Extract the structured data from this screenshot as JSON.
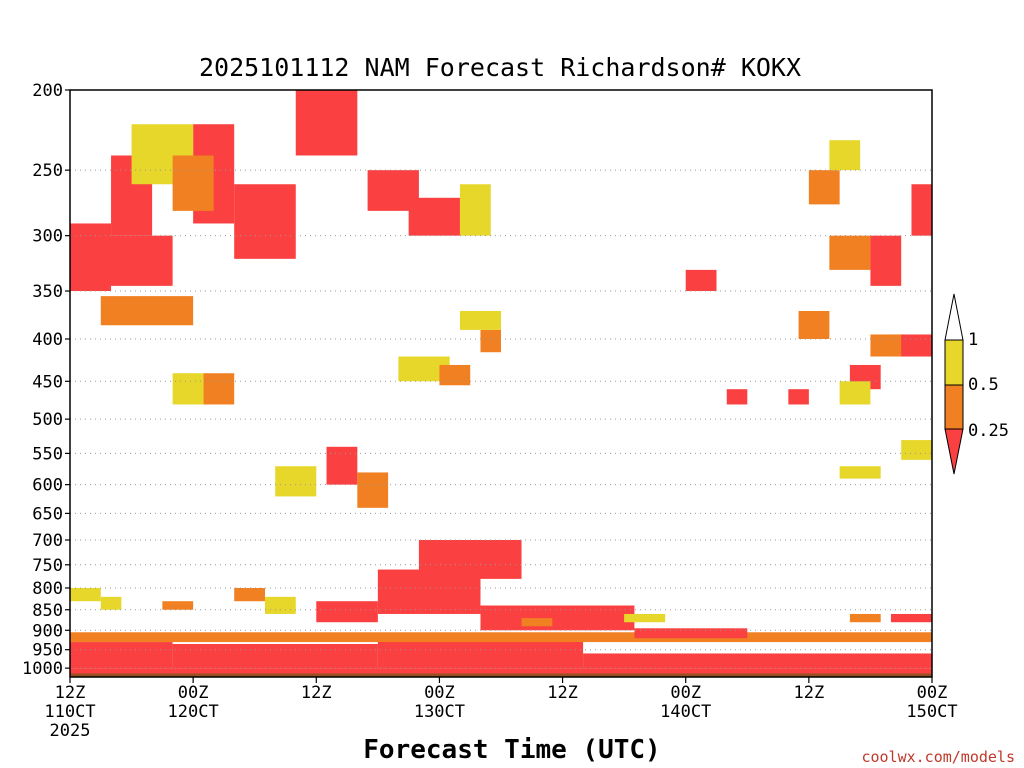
{
  "chart_data": {
    "type": "heatmap",
    "title": "2025101112 NAM Forecast Richardson# KOKX",
    "xlabel": "Forecast Time (UTC)",
    "ylabel": "",
    "credit": "coolwx.com/models",
    "x_range_hours": [
      0,
      84
    ],
    "y_range_hpa": [
      200,
      1025
    ],
    "y_scale": "log",
    "grid": "dotted horizontal",
    "y_ticks": [
      200,
      250,
      300,
      350,
      400,
      450,
      500,
      550,
      600,
      650,
      700,
      750,
      800,
      850,
      900,
      950,
      1000
    ],
    "x_ticks": [
      {
        "hour": 0,
        "line1": "12Z",
        "line2": "110CT",
        "line3": "2025"
      },
      {
        "hour": 12,
        "line1": "00Z",
        "line2": "120CT",
        "line3": ""
      },
      {
        "hour": 24,
        "line1": "12Z",
        "line2": "",
        "line3": ""
      },
      {
        "hour": 36,
        "line1": "00Z",
        "line2": "130CT",
        "line3": ""
      },
      {
        "hour": 48,
        "line1": "12Z",
        "line2": "",
        "line3": ""
      },
      {
        "hour": 60,
        "line1": "00Z",
        "line2": "140CT",
        "line3": ""
      },
      {
        "hour": 72,
        "line1": "12Z",
        "line2": "",
        "line3": ""
      },
      {
        "hour": 84,
        "line1": "00Z",
        "line2": "150CT",
        "line3": ""
      }
    ],
    "legend": {
      "placement": "right",
      "labels": [
        "1",
        "0.5",
        "0.25"
      ],
      "colors": {
        "high": "#ffffff",
        "mid": "#e6d72a",
        "low": "#f08022",
        "lowest": "#fa4040"
      }
    },
    "colors": {
      "red": "#fa4040",
      "orange": "#f08022",
      "yellow": "#e6d72a",
      "ground": "#9a4e23"
    },
    "ground_pressure_hpa": 1015,
    "regions": [
      {
        "h0": 0,
        "h1": 84,
        "p0": 1000,
        "p1": 1015,
        "level": "red"
      },
      {
        "h0": 0,
        "h1": 10,
        "p0": 930,
        "p1": 1000,
        "level": "red"
      },
      {
        "h0": 10,
        "h1": 30,
        "p0": 935,
        "p1": 1000,
        "level": "red"
      },
      {
        "h0": 30,
        "h1": 50,
        "p0": 925,
        "p1": 1000,
        "level": "red"
      },
      {
        "h0": 50,
        "h1": 84,
        "p0": 960,
        "p1": 1000,
        "level": "red"
      },
      {
        "h0": 0,
        "h1": 84,
        "p0": 905,
        "p1": 930,
        "level": "orange"
      },
      {
        "h0": 30,
        "h1": 40,
        "p0": 760,
        "p1": 860,
        "level": "red"
      },
      {
        "h0": 34,
        "h1": 44,
        "p0": 700,
        "p1": 780,
        "level": "red"
      },
      {
        "h0": 40,
        "h1": 55,
        "p0": 840,
        "p1": 900,
        "level": "red"
      },
      {
        "h0": 55,
        "h1": 66,
        "p0": 895,
        "p1": 920,
        "level": "red"
      },
      {
        "h0": 24,
        "h1": 30,
        "p0": 830,
        "p1": 880,
        "level": "red"
      },
      {
        "h0": 0,
        "h1": 4,
        "p0": 290,
        "p1": 350,
        "level": "red"
      },
      {
        "h0": 3,
        "h1": 10,
        "p0": 300,
        "p1": 345,
        "level": "red"
      },
      {
        "h0": 3,
        "h1": 12,
        "p0": 355,
        "p1": 385,
        "level": "orange"
      },
      {
        "h0": 4,
        "h1": 8,
        "p0": 240,
        "p1": 300,
        "level": "red"
      },
      {
        "h0": 12,
        "h1": 16,
        "p0": 220,
        "p1": 290,
        "level": "red"
      },
      {
        "h0": 16,
        "h1": 22,
        "p0": 260,
        "p1": 320,
        "level": "red"
      },
      {
        "h0": 22,
        "h1": 28,
        "p0": 200,
        "p1": 240,
        "level": "red"
      },
      {
        "h0": 29,
        "h1": 34,
        "p0": 250,
        "p1": 280,
        "level": "red"
      },
      {
        "h0": 33,
        "h1": 38,
        "p0": 270,
        "p1": 300,
        "level": "red"
      },
      {
        "h0": 6,
        "h1": 12,
        "p0": 220,
        "p1": 260,
        "level": "yellow"
      },
      {
        "h0": 10,
        "h1": 14,
        "p0": 240,
        "p1": 280,
        "level": "orange"
      },
      {
        "h0": 38,
        "h1": 41,
        "p0": 260,
        "p1": 300,
        "level": "yellow"
      },
      {
        "h0": 25,
        "h1": 28,
        "p0": 540,
        "p1": 600,
        "level": "red"
      },
      {
        "h0": 28,
        "h1": 31,
        "p0": 580,
        "p1": 640,
        "level": "orange"
      },
      {
        "h0": 20,
        "h1": 24,
        "p0": 570,
        "p1": 620,
        "level": "yellow"
      },
      {
        "h0": 13,
        "h1": 16,
        "p0": 440,
        "p1": 480,
        "level": "orange"
      },
      {
        "h0": 10,
        "h1": 13,
        "p0": 440,
        "p1": 480,
        "level": "yellow"
      },
      {
        "h0": 32,
        "h1": 37,
        "p0": 420,
        "p1": 450,
        "level": "yellow"
      },
      {
        "h0": 36,
        "h1": 39,
        "p0": 430,
        "p1": 455,
        "level": "orange"
      },
      {
        "h0": 40,
        "h1": 42,
        "p0": 390,
        "p1": 415,
        "level": "orange"
      },
      {
        "h0": 38,
        "h1": 42,
        "p0": 370,
        "p1": 390,
        "level": "yellow"
      },
      {
        "h0": 60,
        "h1": 63,
        "p0": 330,
        "p1": 350,
        "level": "red"
      },
      {
        "h0": 64,
        "h1": 66,
        "p0": 460,
        "p1": 480,
        "level": "red"
      },
      {
        "h0": 70,
        "h1": 72,
        "p0": 460,
        "p1": 480,
        "level": "red"
      },
      {
        "h0": 71,
        "h1": 74,
        "p0": 370,
        "p1": 400,
        "level": "orange"
      },
      {
        "h0": 74,
        "h1": 78,
        "p0": 300,
        "p1": 330,
        "level": "orange"
      },
      {
        "h0": 78,
        "h1": 81,
        "p0": 300,
        "p1": 345,
        "level": "red"
      },
      {
        "h0": 80,
        "h1": 84,
        "p0": 395,
        "p1": 420,
        "level": "red"
      },
      {
        "h0": 78,
        "h1": 81,
        "p0": 395,
        "p1": 420,
        "level": "orange"
      },
      {
        "h0": 76,
        "h1": 79,
        "p0": 430,
        "p1": 460,
        "level": "red"
      },
      {
        "h0": 75,
        "h1": 78,
        "p0": 450,
        "p1": 480,
        "level": "yellow"
      },
      {
        "h0": 72,
        "h1": 75,
        "p0": 250,
        "p1": 275,
        "level": "orange"
      },
      {
        "h0": 82,
        "h1": 84,
        "p0": 260,
        "p1": 300,
        "level": "red"
      },
      {
        "h0": 74,
        "h1": 77,
        "p0": 230,
        "p1": 250,
        "level": "yellow"
      },
      {
        "h0": 75,
        "h1": 79,
        "p0": 570,
        "p1": 590,
        "level": "yellow"
      },
      {
        "h0": 81,
        "h1": 84,
        "p0": 530,
        "p1": 560,
        "level": "yellow"
      },
      {
        "h0": 0,
        "h1": 3,
        "p0": 800,
        "p1": 830,
        "level": "yellow"
      },
      {
        "h0": 3,
        "h1": 5,
        "p0": 820,
        "p1": 850,
        "level": "yellow"
      },
      {
        "h0": 9,
        "h1": 12,
        "p0": 830,
        "p1": 850,
        "level": "orange"
      },
      {
        "h0": 16,
        "h1": 19,
        "p0": 800,
        "p1": 830,
        "level": "orange"
      },
      {
        "h0": 19,
        "h1": 22,
        "p0": 820,
        "p1": 860,
        "level": "yellow"
      },
      {
        "h0": 44,
        "h1": 47,
        "p0": 870,
        "p1": 890,
        "level": "orange"
      },
      {
        "h0": 54,
        "h1": 58,
        "p0": 860,
        "p1": 880,
        "level": "yellow"
      },
      {
        "h0": 76,
        "h1": 79,
        "p0": 860,
        "p1": 880,
        "level": "orange"
      },
      {
        "h0": 80,
        "h1": 84,
        "p0": 860,
        "p1": 880,
        "level": "red"
      }
    ]
  }
}
